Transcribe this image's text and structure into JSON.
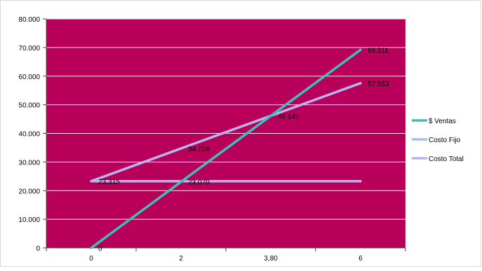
{
  "chart_data": {
    "type": "line",
    "categories": [
      "0",
      "2",
      "3,80",
      "6"
    ],
    "ylim": [
      0,
      80000
    ],
    "y_ticks": [
      {
        "value": 0,
        "label": "0"
      },
      {
        "value": 10000,
        "label": "10.000"
      },
      {
        "value": 20000,
        "label": "20.000"
      },
      {
        "value": 30000,
        "label": "30.000"
      },
      {
        "value": 40000,
        "label": "40.000"
      },
      {
        "value": 50000,
        "label": "50.000"
      },
      {
        "value": 60000,
        "label": "60.000"
      },
      {
        "value": 70000,
        "label": "70.000"
      },
      {
        "value": 80000,
        "label": "80.000"
      }
    ],
    "grid": true,
    "legend_position": "right",
    "plot_background": "#B8005A",
    "series": [
      {
        "name": "$ Ventas",
        "color": "#3CC0B8",
        "values": [
          0,
          23070,
          46141,
          69211
        ]
      },
      {
        "name": "Costo Fijo",
        "color": "#A8BEF0",
        "values": [
          23315,
          23315,
          23315,
          23315
        ]
      },
      {
        "name": "Costo Total",
        "color": "#B6B6EE",
        "values": [
          23315,
          34728,
          46141,
          57553
        ]
      }
    ],
    "data_labels": [
      {
        "category": "0",
        "value": 0,
        "text": "0"
      },
      {
        "category": "0",
        "value": 23315,
        "text": "23.315"
      },
      {
        "category": "2",
        "value": 23070,
        "text": "23.070"
      },
      {
        "category": "2",
        "value": 34728,
        "text": "34.728"
      },
      {
        "category": "3,80",
        "value": 46141,
        "text": "46.141"
      },
      {
        "category": "6",
        "value": 69211,
        "text": "69.211"
      },
      {
        "category": "6",
        "value": 57553,
        "text": "57.553"
      }
    ]
  }
}
